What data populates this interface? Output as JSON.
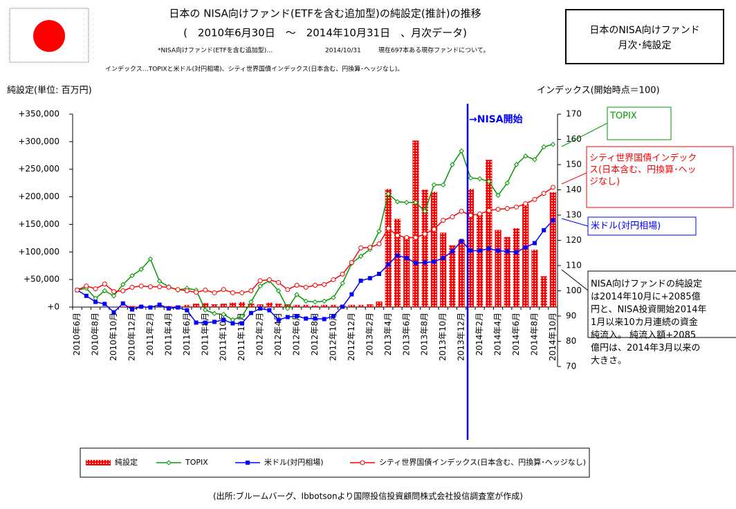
{
  "chart_data": {
    "type": "bar-line",
    "title": "日本の NISA向けファンド(ETFを含む追加型)の純設定(推計)の推移",
    "subtitle": "(　2010年6月30日　～　2014年10月31日　、月次データ)",
    "notes": [
      "*NISA向けファンド(ETFを含む追加型)…",
      "2014/10/31",
      "現在697本ある現存ファンドについて。",
      "インデックス…TOPIXと米ドル(対円相場)、シティ世界国債インデックス(日本含む、円換算･ヘッジなし)。"
    ],
    "box_title": [
      "日本のNISA向けファンド",
      "月次･純設定"
    ],
    "ylabel": "純設定(単位: 百万円)",
    "y2label": "インデックス(開始時点＝100)",
    "source": "(出所:ブルームバーグ、Ibbotsonより国際投信投資顧問株式会社投信調査室が作成)",
    "annotations": {
      "nisa_start": "→NISA開始",
      "topix": "TOPIX",
      "citi": [
        "シティ世界国債インデック",
        "ス(日本含む、円換算･ヘッ",
        "ジなし)"
      ],
      "usd": "米ドル(対円相場)",
      "comment": [
        "NISA向けファンドの純設定",
        "は2014年10月に+2085億",
        "円と、NISA投資開始2014年",
        "1月以来10カ月連続の資金",
        "純流入。 純流入額+2085",
        "億円は、2014年3月以来の",
        "大きさ。"
      ]
    },
    "categories": [
      "2010年6月",
      null,
      "2010年8月",
      null,
      "2010年10月",
      null,
      "2010年12月",
      null,
      "2011年2月",
      null,
      "2011年4月",
      null,
      "2011年6月",
      null,
      "2011年8月",
      null,
      "2011年10月",
      null,
      "2011年12月",
      null,
      "2012年2月",
      null,
      "2012年4月",
      null,
      "2012年6月",
      null,
      "2012年8月",
      null,
      "2012年10月",
      null,
      "2012年12月",
      null,
      "2013年2月",
      null,
      "2013年4月",
      null,
      "2013年6月",
      null,
      "2013年8月",
      null,
      "2013年10月",
      null,
      "2013年12月",
      null,
      "2014年2月",
      null,
      "2014年4月",
      null,
      "2014年6月",
      null,
      "2014年8月",
      null,
      "2014年10月"
    ],
    "series": [
      {
        "name": "純設定",
        "color": "#ff0000",
        "values": [
          0,
          0,
          0,
          0,
          0,
          1000,
          2000,
          2000,
          2000,
          1000,
          2000,
          3000,
          4000,
          6000,
          7000,
          5000,
          6000,
          8000,
          9000,
          6000,
          5000,
          8000,
          6000,
          5000,
          4000,
          4000,
          3000,
          4000,
          4000,
          3000,
          4000,
          4000,
          5000,
          10000,
          214000,
          160000,
          128000,
          302000,
          213000,
          209000,
          135000,
          112000,
          122000,
          214000,
          168000,
          267000,
          140000,
          127000,
          143000,
          187000,
          104000,
          56000,
          208500
        ]
      },
      {
        "name": "TOPIX",
        "color": "#009900",
        "axis": "y2",
        "values": [
          100.3,
          101,
          97,
          100,
          98,
          102.5,
          106,
          108.5,
          112.6,
          103.8,
          101.6,
          100.3,
          101,
          100.3,
          92.4,
          91,
          90.7,
          88.5,
          89.9,
          95.6,
          101.9,
          104,
          100,
          93,
          98.5,
          95.9,
          95.6,
          95.9,
          97.3,
          103,
          110.9,
          113.7,
          116.4,
          123.6,
          138.4,
          135.3,
          135,
          135,
          131.5,
          142,
          142,
          150,
          155.4,
          144.7,
          144.4,
          143.3,
          137.8,
          142.7,
          150,
          153.4,
          152,
          157,
          158
        ]
      },
      {
        "name": "米ドル(対円相場)",
        "color": "#0000ff",
        "axis": "y2",
        "values": [
          100.3,
          98,
          95.6,
          94.8,
          91.5,
          95,
          92.6,
          93.7,
          93.4,
          94.5,
          93,
          93.4,
          92.3,
          87.4,
          87.4,
          87.7,
          88.5,
          87.1,
          87.1,
          91.2,
          93,
          92.3,
          88.5,
          89.6,
          90,
          89,
          89,
          88.8,
          90,
          93.7,
          98.6,
          104,
          105,
          106.7,
          110.4,
          114,
          113,
          111,
          111.2,
          111.5,
          113,
          115.6,
          119.7,
          115.9,
          115.9,
          116.7,
          115.9,
          115.6,
          115.3,
          117.2,
          118.9,
          124,
          127.9
        ]
      },
      {
        "name": "シティ世界国債インデックス(日本含む、円換算･ヘッジなし)",
        "color": "#ff0000",
        "axis": "y2",
        "values": [
          100.3,
          101.9,
          100.8,
          102.7,
          99.7,
          100,
          101.4,
          101.9,
          101.6,
          101.6,
          101.4,
          100.5,
          100,
          99.4,
          100.3,
          99.2,
          100.5,
          99.2,
          99.2,
          100,
          104,
          104.4,
          103.3,
          100.5,
          102.2,
          101.4,
          102.2,
          102.5,
          104.4,
          106.6,
          111.2,
          117,
          117.2,
          118.6,
          124.7,
          121.9,
          121.1,
          121.1,
          122.5,
          124.4,
          127.9,
          129.3,
          131.5,
          129.9,
          130.4,
          131.8,
          132.3,
          132.6,
          133.2,
          134.5,
          136.2,
          138.6,
          141
        ]
      }
    ],
    "ylim": [
      0,
      350000
    ],
    "yticks": [
      {
        "value": 0,
        "label": "+0"
      },
      {
        "value": 50000,
        "label": "+50,000"
      },
      {
        "value": 100000,
        "label": "+100,000"
      },
      {
        "value": 150000,
        "label": "+150,000"
      },
      {
        "value": 200000,
        "label": "+200,000"
      },
      {
        "value": 250000,
        "label": "+250,000"
      },
      {
        "value": 300000,
        "label": "+300,000"
      },
      {
        "value": 350000,
        "label": "+350,000"
      }
    ],
    "y2lim": [
      70,
      170
    ],
    "y2ticks": [
      70,
      80,
      90,
      100,
      110,
      120,
      130,
      140,
      150,
      160,
      170
    ]
  }
}
